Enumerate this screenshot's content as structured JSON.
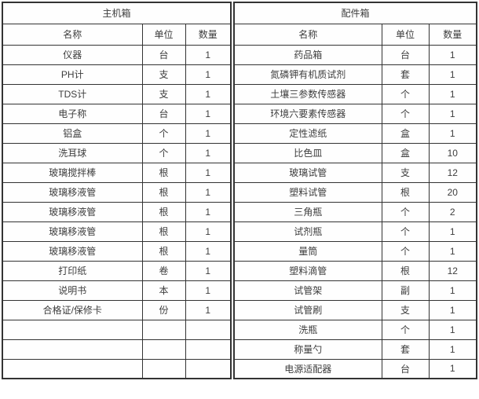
{
  "page": {
    "background_color": "#ffffff",
    "border_color": "#333333",
    "text_color": "#3d3d3d"
  },
  "tables": [
    {
      "id": "main-box",
      "title": "主机箱",
      "columns": [
        "名称",
        "单位",
        "数量"
      ],
      "rows": [
        [
          "仪器",
          "台",
          "1"
        ],
        [
          "PH计",
          "支",
          "1"
        ],
        [
          "TDS计",
          "支",
          "1"
        ],
        [
          "电子称",
          "台",
          "1"
        ],
        [
          "铝盒",
          "个",
          "1"
        ],
        [
          "洗耳球",
          "个",
          "1"
        ],
        [
          "玻璃搅拌棒",
          "根",
          "1"
        ],
        [
          "玻璃移液管",
          "根",
          "1"
        ],
        [
          "玻璃移液管",
          "根",
          "1"
        ],
        [
          "玻璃移液管",
          "根",
          "1"
        ],
        [
          "玻璃移液管",
          "根",
          "1"
        ],
        [
          "打印纸",
          "卷",
          "1"
        ],
        [
          "说明书",
          "本",
          "1"
        ],
        [
          "合格证/保修卡",
          "份",
          "1"
        ],
        [
          "",
          "",
          ""
        ],
        [
          "",
          "",
          ""
        ],
        [
          "",
          "",
          ""
        ]
      ]
    },
    {
      "id": "accessory-box",
      "title": "配件箱",
      "columns": [
        "名称",
        "单位",
        "数量"
      ],
      "rows": [
        [
          "药品箱",
          "台",
          "1"
        ],
        [
          "氮磷钾有机质试剂",
          "套",
          "1"
        ],
        [
          "土壤三参数传感器",
          "个",
          "1"
        ],
        [
          "环境六要素传感器",
          "个",
          "1"
        ],
        [
          "定性滤纸",
          "盒",
          "1"
        ],
        [
          "比色皿",
          "盒",
          "10"
        ],
        [
          "玻璃试管",
          "支",
          "12"
        ],
        [
          "塑料试管",
          "根",
          "20"
        ],
        [
          "三角瓶",
          "个",
          "2"
        ],
        [
          "试剂瓶",
          "个",
          "1"
        ],
        [
          "量筒",
          "个",
          "1"
        ],
        [
          "塑料滴管",
          "根",
          "12"
        ],
        [
          "试管架",
          "副",
          "1"
        ],
        [
          "试管刷",
          "支",
          "1"
        ],
        [
          "洗瓶",
          "个",
          "1"
        ],
        [
          "称量勺",
          "套",
          "1"
        ],
        [
          "电源适配器",
          "台",
          "1"
        ]
      ]
    }
  ]
}
